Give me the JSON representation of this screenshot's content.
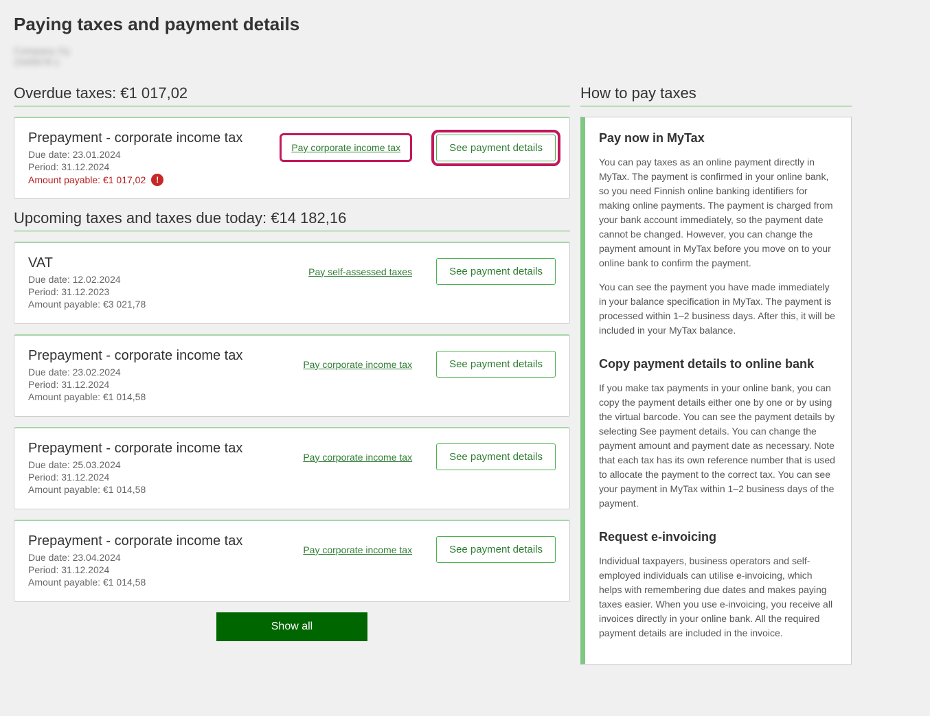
{
  "page_title": "Paying taxes and payment details",
  "blurred_lines": [
    "Company Oy",
    "2345678-1"
  ],
  "overdue": {
    "heading": "Overdue taxes: €1 017,02",
    "items": [
      {
        "title": "Prepayment - corporate income tax",
        "due_date": "Due date: 23.01.2024",
        "period": "Period: 31.12.2024",
        "amount": "Amount payable: €1 017,02",
        "pay_label": "Pay corporate income tax",
        "details_label": "See payment details"
      }
    ]
  },
  "upcoming": {
    "heading": "Upcoming taxes and taxes due today: €14 182,16",
    "items": [
      {
        "title": "VAT",
        "due_date": "Due date: 12.02.2024",
        "period": "Period: 31.12.2023",
        "amount": "Amount payable: €3 021,78",
        "pay_label": "Pay self-assessed taxes",
        "details_label": "See payment details"
      },
      {
        "title": "Prepayment - corporate income tax",
        "due_date": "Due date: 23.02.2024",
        "period": "Period: 31.12.2024",
        "amount": "Amount payable: €1 014,58",
        "pay_label": "Pay corporate income tax",
        "details_label": "See payment details"
      },
      {
        "title": "Prepayment - corporate income tax",
        "due_date": "Due date: 25.03.2024",
        "period": "Period: 31.12.2024",
        "amount": "Amount payable: €1 014,58",
        "pay_label": "Pay corporate income tax",
        "details_label": "See payment details"
      },
      {
        "title": "Prepayment - corporate income tax",
        "due_date": "Due date: 23.04.2024",
        "period": "Period: 31.12.2024",
        "amount": "Amount payable: €1 014,58",
        "pay_label": "Pay corporate income tax",
        "details_label": "See payment details"
      }
    ]
  },
  "show_all_label": "Show all",
  "sidebar": {
    "heading": "How to pay taxes",
    "sections": [
      {
        "title": "Pay now in MyTax",
        "paragraphs": [
          "You can pay taxes as an online payment directly in MyTax. The payment is confirmed in your online bank, so you need Finnish online banking identifiers for making online payments. The payment is charged from your bank account immediately, so the payment date cannot be changed. However, you can change the payment amount in MyTax before you move on to your online bank to confirm the payment.",
          "You can see the payment you have made immediately in your balance specification in MyTax. The payment is processed within 1–2 business days. After this, it will be included in your MyTax balance."
        ]
      },
      {
        "title": "Copy payment details to online bank",
        "paragraphs": [
          "If you make tax payments in your online bank, you can copy the payment details either one by one or by using the virtual barcode. You can see the payment details by selecting See payment details. You can change the payment amount and payment date as necessary. Note that each tax has its own reference number that is used to allocate the payment to the correct tax. You can see your payment in MyTax within 1–2 business days of the payment."
        ]
      },
      {
        "title": "Request e-invoicing",
        "paragraphs": [
          "Individual taxpayers, business operators and self-employed individuals can utilise e-invoicing, which helps with remembering due dates and makes paying taxes easier. When you use e-invoicing, you receive all invoices directly in your online bank. All the required payment details are included in the invoice."
        ]
      }
    ]
  }
}
